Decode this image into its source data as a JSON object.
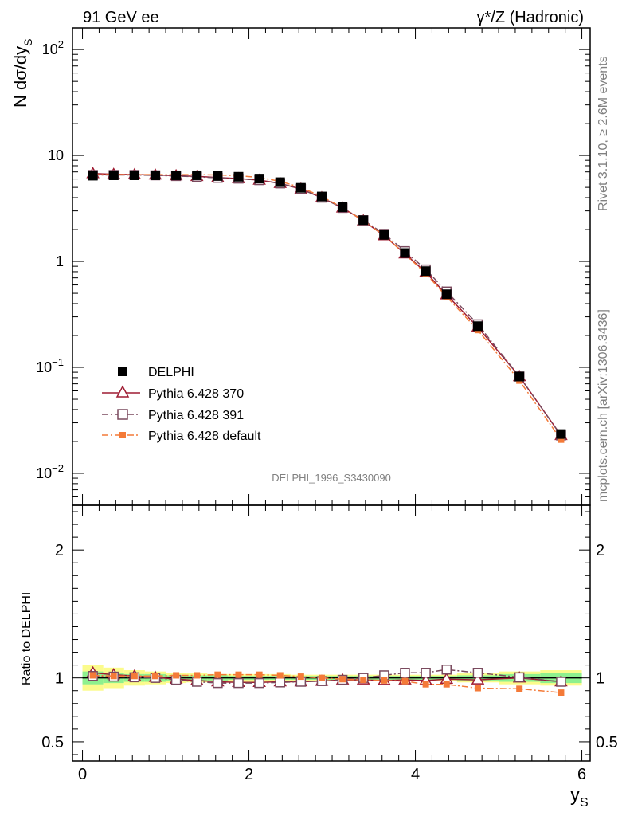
{
  "header": {
    "left": "91 GeV ee",
    "right": "γ*/Z (Hadronic)"
  },
  "side_labels": {
    "rivet": "Rivet 3.1.10, ≥ 2.6M events",
    "mcplots": "mcplots.cern.ch [arXiv:1306.3436]"
  },
  "watermark": "DELPHI_1996_S3430090",
  "chart_data": [
    {
      "type": "scatter",
      "panel": "main",
      "ylabel_main": "N dσ/dy",
      "ylabel_sub": "S",
      "yscale": "log",
      "ylim": [
        0.005,
        160
      ],
      "yticks": [
        {
          "value": 100,
          "base": "10",
          "exp": "2"
        },
        {
          "value": 10,
          "base": "10",
          "exp": ""
        },
        {
          "value": 1,
          "base": "1",
          "exp": ""
        },
        {
          "value": 0.1,
          "base": "10",
          "exp": "−1"
        },
        {
          "value": 0.01,
          "base": "10",
          "exp": "−2"
        }
      ],
      "x": [
        0.125,
        0.375,
        0.625,
        0.875,
        1.125,
        1.375,
        1.625,
        1.875,
        2.125,
        2.375,
        2.625,
        2.875,
        3.125,
        3.375,
        3.625,
        3.875,
        4.125,
        4.375,
        4.75,
        5.25,
        5.75
      ],
      "series": [
        {
          "name": "DELPHI",
          "marker": "square-filled",
          "color": "#000000",
          "values": [
            6.45,
            6.5,
            6.5,
            6.5,
            6.5,
            6.5,
            6.4,
            6.3,
            6.05,
            5.6,
            4.95,
            4.1,
            3.25,
            2.45,
            1.78,
            1.2,
            0.81,
            0.49,
            0.245,
            0.082,
            0.0235
          ]
        },
        {
          "name": "Pythia 6.428 370",
          "marker": "triangle-open",
          "color": "#9e1b32",
          "values": [
            6.75,
            6.65,
            6.6,
            6.55,
            6.45,
            6.35,
            6.2,
            6.05,
            5.85,
            5.45,
            4.82,
            4.0,
            3.2,
            2.42,
            1.75,
            1.18,
            0.79,
            0.485,
            0.24,
            0.082,
            0.0228
          ]
        },
        {
          "name": "Pythia 6.428 391",
          "marker": "square-open",
          "color": "#7a4a5e",
          "values": [
            6.55,
            6.55,
            6.55,
            6.5,
            6.4,
            6.3,
            6.15,
            6.05,
            5.85,
            5.45,
            4.82,
            4.0,
            3.2,
            2.45,
            1.82,
            1.25,
            0.84,
            0.52,
            0.255,
            0.082,
            0.0228
          ]
        },
        {
          "name": "Pythia 6.428 default",
          "marker": "square-small",
          "color": "#f47a38",
          "values": [
            6.6,
            6.6,
            6.6,
            6.6,
            6.6,
            6.6,
            6.55,
            6.45,
            6.2,
            5.7,
            4.98,
            4.1,
            3.22,
            2.42,
            1.76,
            1.17,
            0.77,
            0.465,
            0.225,
            0.075,
            0.0208
          ]
        }
      ]
    },
    {
      "type": "scatter",
      "panel": "ratio",
      "ylabel": "Ratio to DELPHI",
      "xlabel": "y",
      "xlabel_sub": "S",
      "xlim": [
        -0.12,
        6.1
      ],
      "xticks": [
        0,
        2,
        4,
        6
      ],
      "ylim": [
        0.35,
        2.35
      ],
      "yticks": [
        0.5,
        1,
        2
      ],
      "yticks_right": [
        0.5,
        1,
        2
      ],
      "x": [
        0.125,
        0.375,
        0.625,
        0.875,
        1.125,
        1.375,
        1.625,
        1.875,
        2.125,
        2.375,
        2.625,
        2.875,
        3.125,
        3.375,
        3.625,
        3.875,
        4.125,
        4.375,
        4.75,
        5.25,
        5.75
      ],
      "bin_edges": [
        0,
        0.25,
        0.5,
        0.75,
        1,
        1.25,
        1.5,
        1.75,
        2,
        2.25,
        2.5,
        2.75,
        3,
        3.25,
        3.5,
        3.75,
        4,
        4.25,
        4.5,
        5,
        5.5,
        6
      ],
      "band_inner": [
        0.05,
        0.04,
        0.03,
        0.03,
        0.02,
        0.02,
        0.02,
        0.015,
        0.015,
        0.015,
        0.015,
        0.015,
        0.015,
        0.015,
        0.015,
        0.015,
        0.015,
        0.015,
        0.02,
        0.03,
        0.04
      ],
      "band_outer": [
        0.1,
        0.08,
        0.06,
        0.05,
        0.04,
        0.035,
        0.03,
        0.03,
        0.03,
        0.03,
        0.025,
        0.025,
        0.025,
        0.025,
        0.025,
        0.025,
        0.025,
        0.025,
        0.035,
        0.05,
        0.06
      ],
      "series": [
        {
          "name": "Pythia 6.428 370",
          "values": [
            1.04,
            1.025,
            1.015,
            1.005,
            0.99,
            0.98,
            0.97,
            0.965,
            0.965,
            0.97,
            0.97,
            0.975,
            0.985,
            0.985,
            0.98,
            0.985,
            0.98,
            0.99,
            0.985,
            1.0,
            0.97
          ]
        },
        {
          "name": "Pythia 6.428 391",
          "values": [
            1.015,
            1.01,
            1.005,
            1.0,
            0.985,
            0.97,
            0.96,
            0.96,
            0.96,
            0.965,
            0.97,
            0.975,
            0.985,
            1.0,
            1.02,
            1.04,
            1.04,
            1.065,
            1.04,
            1.005,
            0.97
          ]
        },
        {
          "name": "Pythia 6.428 default",
          "values": [
            1.02,
            1.015,
            1.015,
            1.015,
            1.02,
            1.02,
            1.025,
            1.025,
            1.025,
            1.02,
            1.01,
            1.0,
            0.99,
            0.985,
            0.98,
            0.975,
            0.95,
            0.95,
            0.92,
            0.915,
            0.885
          ]
        }
      ]
    }
  ]
}
